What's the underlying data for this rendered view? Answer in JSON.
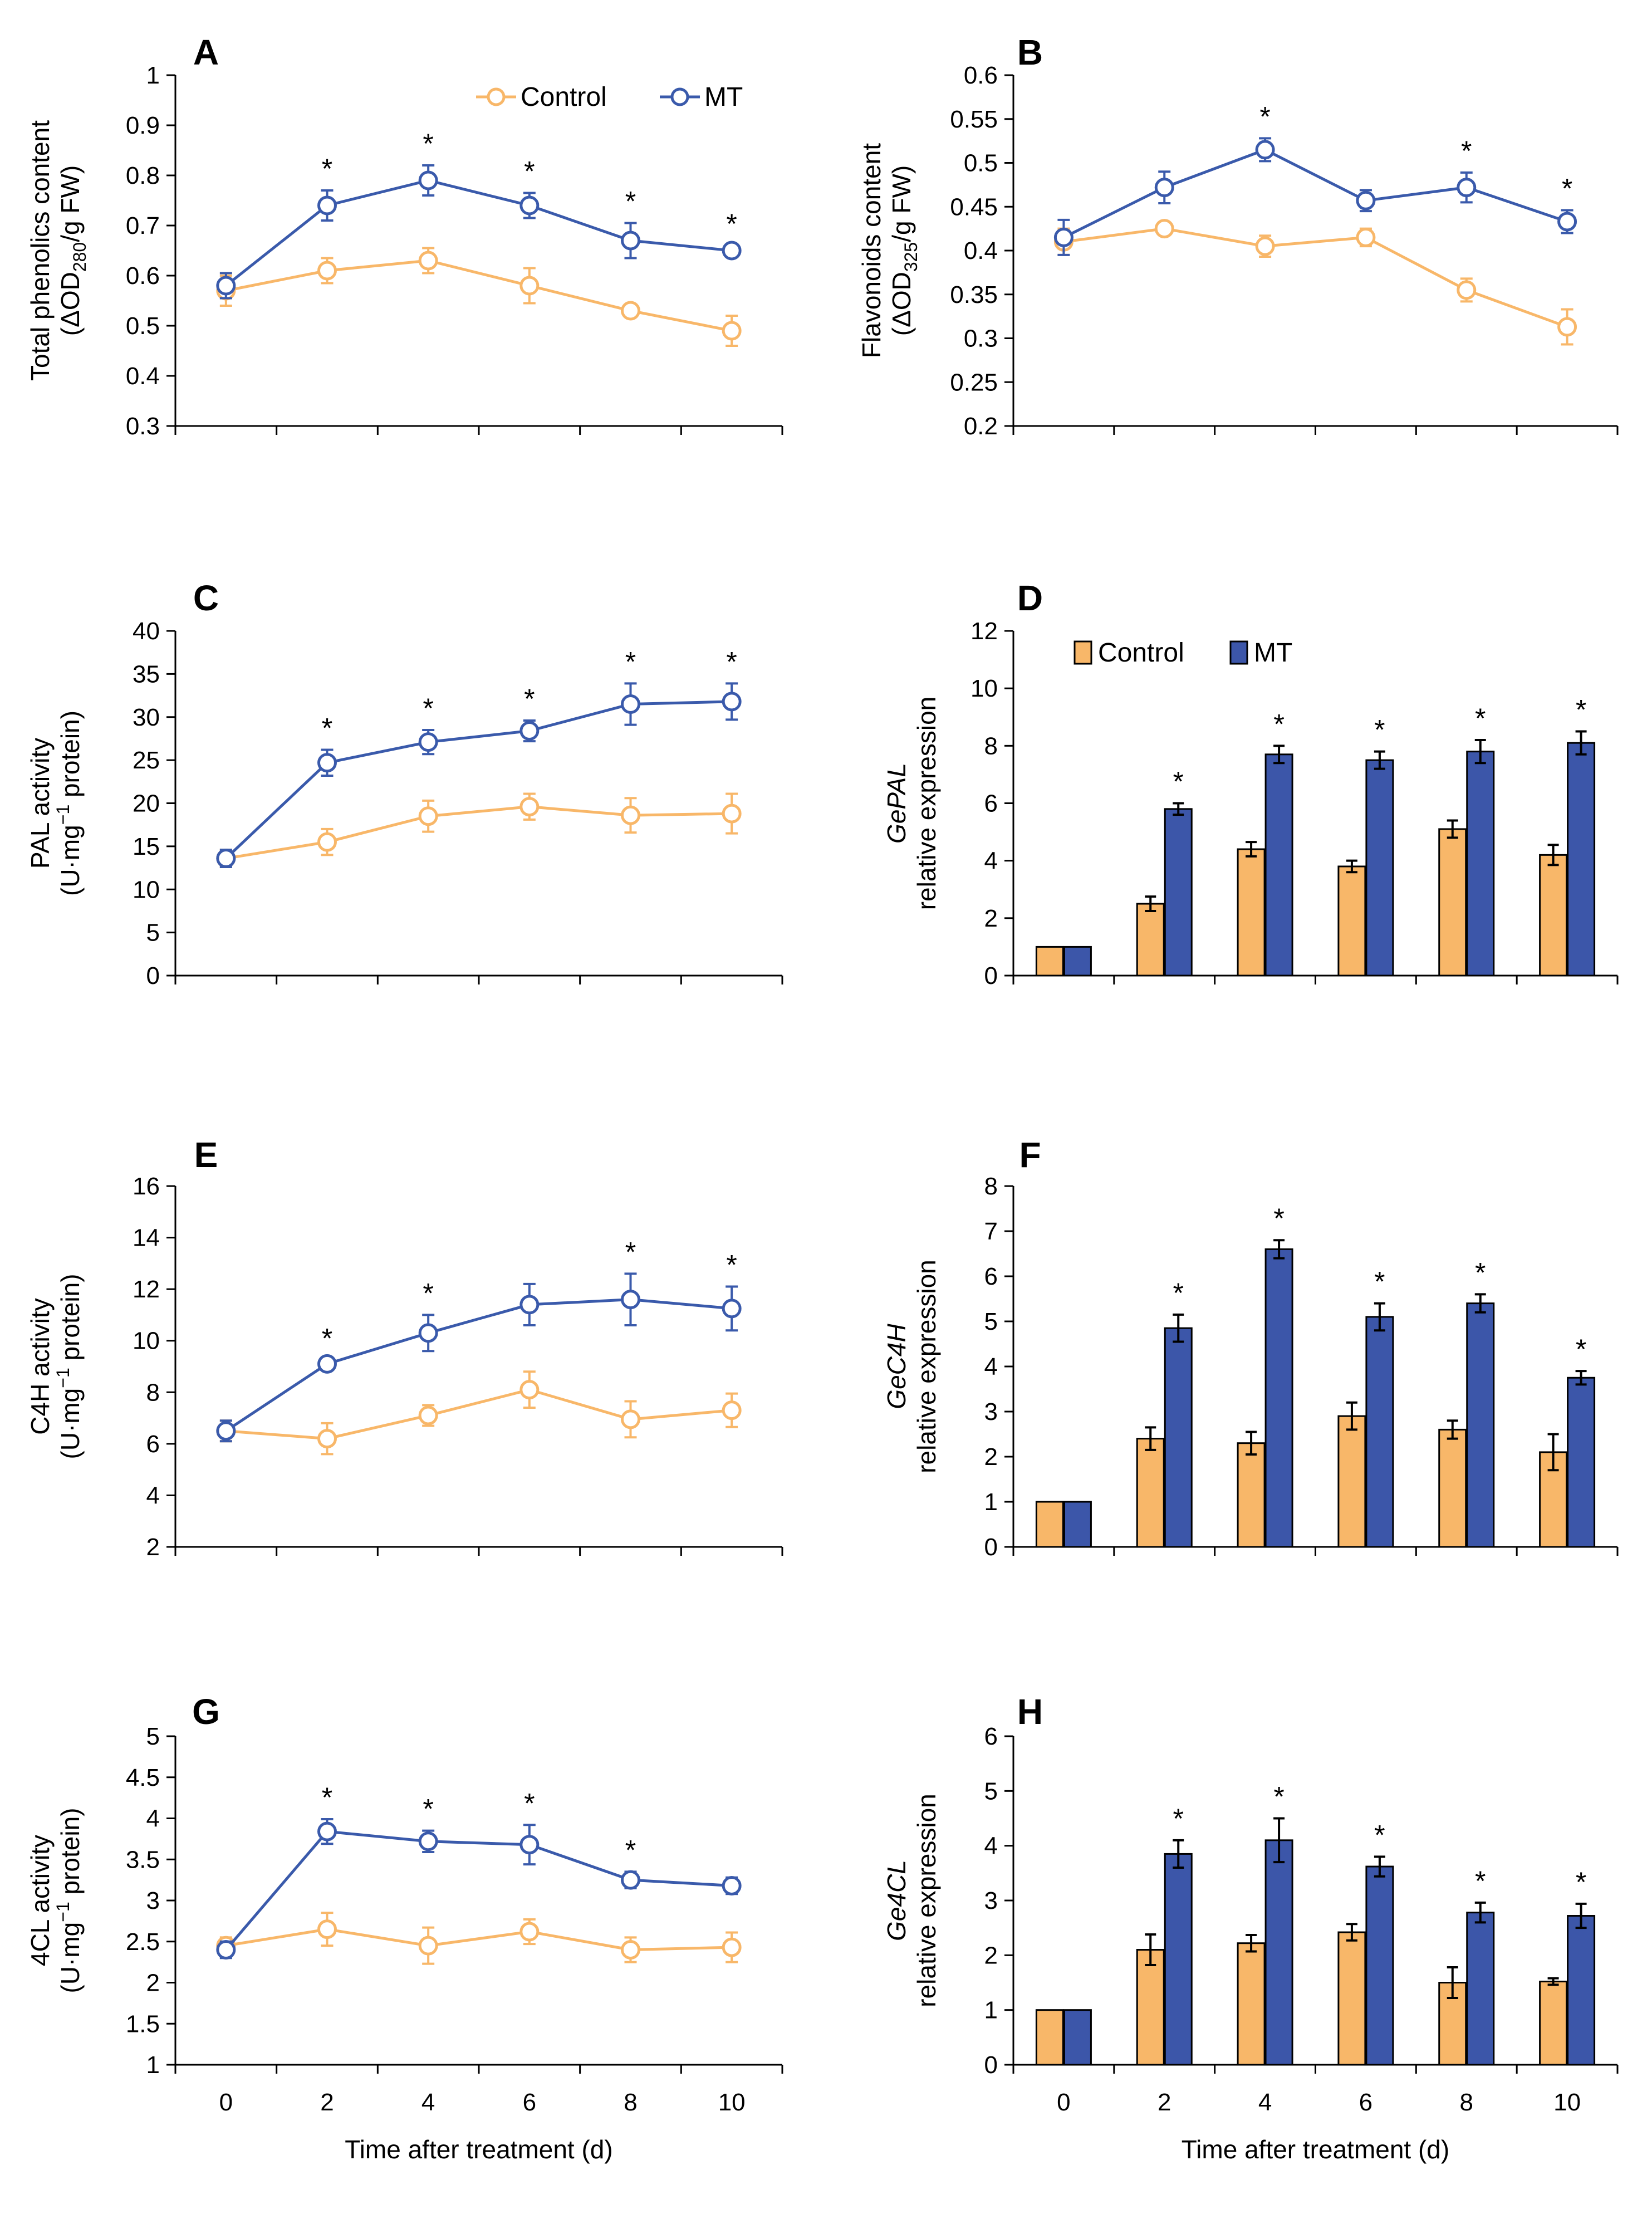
{
  "colors": {
    "control": "#F8B769",
    "mt": "#3A5AAB",
    "mt_bar": "#3C56A9",
    "axis": "#000000"
  },
  "legend_labels": {
    "control": "Control",
    "mt": "MT"
  },
  "chart_data": [
    {
      "id": "A",
      "type": "line",
      "panel_label": "A",
      "ylabel": [
        "Total phenolics content",
        "(ΔOD",
        "280",
        "/g FW)"
      ],
      "xlabel": "",
      "ylim": [
        0.3,
        1
      ],
      "ystep": 0.1,
      "ydecimals": 1,
      "show_x_ticks": false,
      "categories": [
        "0",
        "2",
        "4",
        "6",
        "8",
        "10"
      ],
      "legend": true,
      "series": [
        {
          "name": "Control",
          "values": [
            0.57,
            0.61,
            0.63,
            0.58,
            0.53,
            0.49
          ],
          "errors": [
            0.03,
            0.025,
            0.025,
            0.035,
            0.01,
            0.03
          ]
        },
        {
          "name": "MT",
          "values": [
            0.58,
            0.74,
            0.79,
            0.74,
            0.67,
            0.65
          ],
          "errors": [
            0.025,
            0.03,
            0.03,
            0.025,
            0.035,
            0.01
          ]
        }
      ],
      "significance": [
        "",
        "*",
        "*",
        "*",
        "*",
        "*"
      ]
    },
    {
      "id": "B",
      "type": "line",
      "panel_label": "B",
      "ylabel": [
        "Flavonoids content",
        "(ΔOD",
        "325",
        "/g FW)"
      ],
      "xlabel": "",
      "ylim": [
        0.2,
        0.6
      ],
      "ystep": 0.05,
      "ydecimals": 2,
      "show_x_ticks": false,
      "categories": [
        "0",
        "2",
        "4",
        "6",
        "8",
        "10"
      ],
      "legend": false,
      "series": [
        {
          "name": "Control",
          "values": [
            0.41,
            0.425,
            0.405,
            0.415,
            0.355,
            0.313
          ],
          "errors": [
            0.015,
            0.005,
            0.012,
            0.01,
            0.013,
            0.02
          ]
        },
        {
          "name": "MT",
          "values": [
            0.415,
            0.472,
            0.515,
            0.457,
            0.472,
            0.433
          ],
          "errors": [
            0.02,
            0.018,
            0.013,
            0.012,
            0.017,
            0.013
          ]
        }
      ],
      "significance": [
        "",
        "",
        "*",
        "",
        "*",
        "*"
      ]
    },
    {
      "id": "C",
      "type": "line",
      "panel_label": "C",
      "ylabel": [
        "PAL activity",
        "(U·mg",
        "−1",
        " protein)"
      ],
      "xlabel": "",
      "ylim": [
        0,
        40
      ],
      "ystep": 5,
      "ydecimals": 0,
      "show_x_ticks": false,
      "categories": [
        "0",
        "2",
        "4",
        "6",
        "8",
        "10"
      ],
      "legend": false,
      "series": [
        {
          "name": "Control",
          "values": [
            13.6,
            15.5,
            18.5,
            19.6,
            18.6,
            18.8
          ],
          "errors": [
            1.0,
            1.5,
            1.8,
            1.5,
            2.0,
            2.3
          ]
        },
        {
          "name": "MT",
          "values": [
            13.6,
            24.7,
            27.1,
            28.4,
            31.5,
            31.8
          ],
          "errors": [
            1.0,
            1.5,
            1.4,
            1.2,
            2.4,
            2.1
          ]
        }
      ],
      "significance": [
        "",
        "*",
        "*",
        "*",
        "*",
        "*"
      ]
    },
    {
      "id": "D",
      "type": "bar",
      "panel_label": "D",
      "ylabel": [
        "GePAL",
        "relative expression"
      ],
      "xlabel": "",
      "ylim": [
        0,
        12
      ],
      "ystep": 2,
      "ydecimals": 0,
      "show_x_ticks": false,
      "categories": [
        "0",
        "2",
        "4",
        "6",
        "8",
        "10"
      ],
      "legend": true,
      "series": [
        {
          "name": "Control",
          "values": [
            1.0,
            2.5,
            4.4,
            3.8,
            5.1,
            4.2
          ],
          "errors": [
            0,
            0.25,
            0.25,
            0.2,
            0.3,
            0.35
          ]
        },
        {
          "name": "MT",
          "values": [
            1.0,
            5.8,
            7.7,
            7.5,
            7.8,
            8.1
          ],
          "errors": [
            0,
            0.2,
            0.3,
            0.3,
            0.4,
            0.4
          ]
        }
      ],
      "significance": [
        "",
        "*",
        "*",
        "*",
        "*",
        "*"
      ]
    },
    {
      "id": "E",
      "type": "line",
      "panel_label": "E",
      "ylabel": [
        "C4H activity",
        "(U·mg",
        "−1",
        " protein)"
      ],
      "xlabel": "",
      "ylim": [
        2,
        16
      ],
      "ystep": 2,
      "ydecimals": 0,
      "show_x_ticks": false,
      "categories": [
        "0",
        "2",
        "4",
        "6",
        "8",
        "10"
      ],
      "legend": false,
      "series": [
        {
          "name": "Control",
          "values": [
            6.5,
            6.2,
            7.1,
            8.1,
            6.95,
            7.3
          ],
          "errors": [
            0.4,
            0.6,
            0.4,
            0.7,
            0.7,
            0.65
          ]
        },
        {
          "name": "MT",
          "values": [
            6.5,
            9.1,
            10.3,
            11.4,
            11.6,
            11.25
          ],
          "errors": [
            0.4,
            0.15,
            0.7,
            0.8,
            1.0,
            0.85
          ]
        }
      ],
      "significance": [
        "",
        "*",
        "*",
        "",
        "*",
        "*"
      ]
    },
    {
      "id": "F",
      "type": "bar",
      "panel_label": "F",
      "ylabel": [
        "GeC4H",
        "relative expression"
      ],
      "xlabel": "",
      "ylim": [
        0,
        8
      ],
      "ystep": 1,
      "ydecimals": 0,
      "show_x_ticks": false,
      "categories": [
        "0",
        "2",
        "4",
        "6",
        "8",
        "10"
      ],
      "legend": false,
      "series": [
        {
          "name": "Control",
          "values": [
            1.0,
            2.4,
            2.3,
            2.9,
            2.6,
            2.1
          ],
          "errors": [
            0,
            0.25,
            0.25,
            0.3,
            0.2,
            0.4
          ]
        },
        {
          "name": "MT",
          "values": [
            1.0,
            4.85,
            6.6,
            5.1,
            5.4,
            3.75
          ],
          "errors": [
            0,
            0.3,
            0.2,
            0.3,
            0.2,
            0.15
          ]
        }
      ],
      "significance": [
        "",
        "*",
        "*",
        "*",
        "*",
        "*"
      ]
    },
    {
      "id": "G",
      "type": "line",
      "panel_label": "G",
      "ylabel": [
        "4CL activity",
        "(U·mg",
        "−1",
        " protein)"
      ],
      "xlabel": "Time after treatment (d)",
      "ylim": [
        1,
        5
      ],
      "ystep": 0.5,
      "ydecimals": 1,
      "show_x_ticks": true,
      "categories": [
        "0",
        "2",
        "4",
        "6",
        "8",
        "10"
      ],
      "legend": false,
      "series": [
        {
          "name": "Control",
          "values": [
            2.45,
            2.65,
            2.45,
            2.62,
            2.4,
            2.43
          ],
          "errors": [
            0.1,
            0.2,
            0.22,
            0.15,
            0.15,
            0.18
          ]
        },
        {
          "name": "MT",
          "values": [
            2.4,
            3.84,
            3.72,
            3.68,
            3.25,
            3.18
          ],
          "errors": [
            0.1,
            0.15,
            0.13,
            0.24,
            0.1,
            0.1
          ]
        }
      ],
      "significance": [
        "",
        "*",
        "*",
        "*",
        "*",
        ""
      ]
    },
    {
      "id": "H",
      "type": "bar",
      "panel_label": "H",
      "ylabel": [
        "Ge4CL",
        "relative expression"
      ],
      "xlabel": "Time after treatment (d)",
      "ylim": [
        0,
        6
      ],
      "ystep": 1,
      "ydecimals": 0,
      "show_x_ticks": true,
      "categories": [
        "0",
        "2",
        "4",
        "6",
        "8",
        "10"
      ],
      "legend": false,
      "series": [
        {
          "name": "Control",
          "values": [
            1.0,
            2.1,
            2.22,
            2.42,
            1.5,
            1.52
          ],
          "errors": [
            0,
            0.28,
            0.15,
            0.15,
            0.28,
            0.06
          ]
        },
        {
          "name": "MT",
          "values": [
            1.0,
            3.85,
            4.1,
            3.62,
            2.78,
            2.72
          ],
          "errors": [
            0,
            0.25,
            0.4,
            0.18,
            0.18,
            0.22
          ]
        }
      ],
      "significance": [
        "",
        "*",
        "*",
        "*",
        "*",
        "*"
      ]
    }
  ]
}
